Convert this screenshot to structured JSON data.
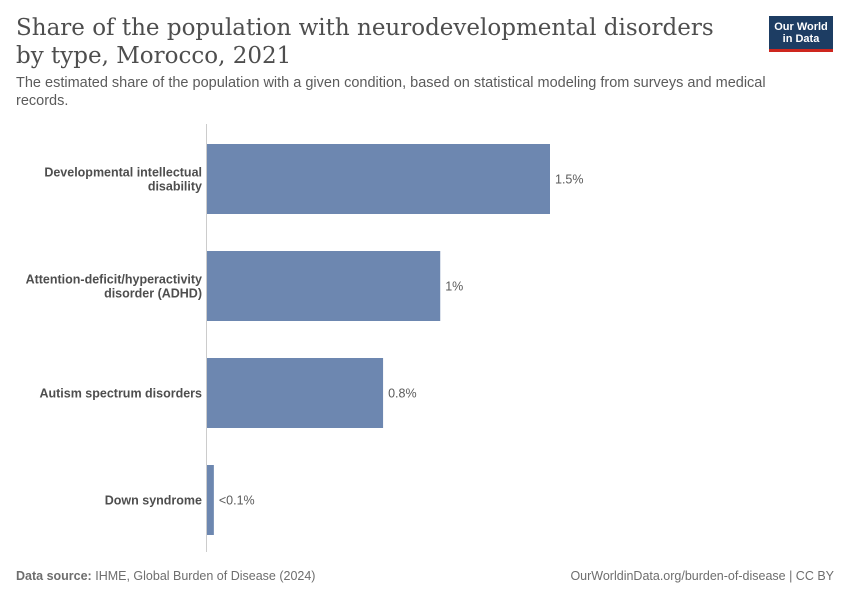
{
  "header": {
    "title": "Share of the population with neurodevelopmental disorders by type, Morocco, 2021",
    "subtitle": "The estimated share of the population with a given condition, based on statistical modeling from surveys and medical records.",
    "logo_line1": "Our World",
    "logo_line2": "in Data"
  },
  "footer": {
    "source_label": "Data source:",
    "source_text": "IHME, Global Burden of Disease (2024)",
    "url_text": "OurWorldinData.org/burden-of-disease | CC BY"
  },
  "colors": {
    "bar": "#6d87b0",
    "axis": "#cccccc",
    "label": "#4e4e4e",
    "value": "#5b5b5b"
  },
  "chart_data": {
    "type": "bar",
    "orientation": "horizontal",
    "categories": [
      "Developmental intellectual disability",
      "Attention-deficit/hyperactivity disorder (ADHD)",
      "Autism spectrum disorders",
      "Down syndrome"
    ],
    "category_label_lines": [
      [
        "Developmental intellectual",
        "disability"
      ],
      [
        "Attention-deficit/hyperactivity",
        "disorder (ADHD)"
      ],
      [
        "Autism spectrum disorders"
      ],
      [
        "Down syndrome"
      ]
    ],
    "values": [
      1.5,
      1.02,
      0.77,
      0.03
    ],
    "value_labels": [
      "1.5%",
      "1%",
      "0.8%",
      "<0.1%"
    ],
    "unit": "%",
    "xlim": [
      0,
      1.5
    ],
    "grid": false,
    "legend": "none"
  }
}
